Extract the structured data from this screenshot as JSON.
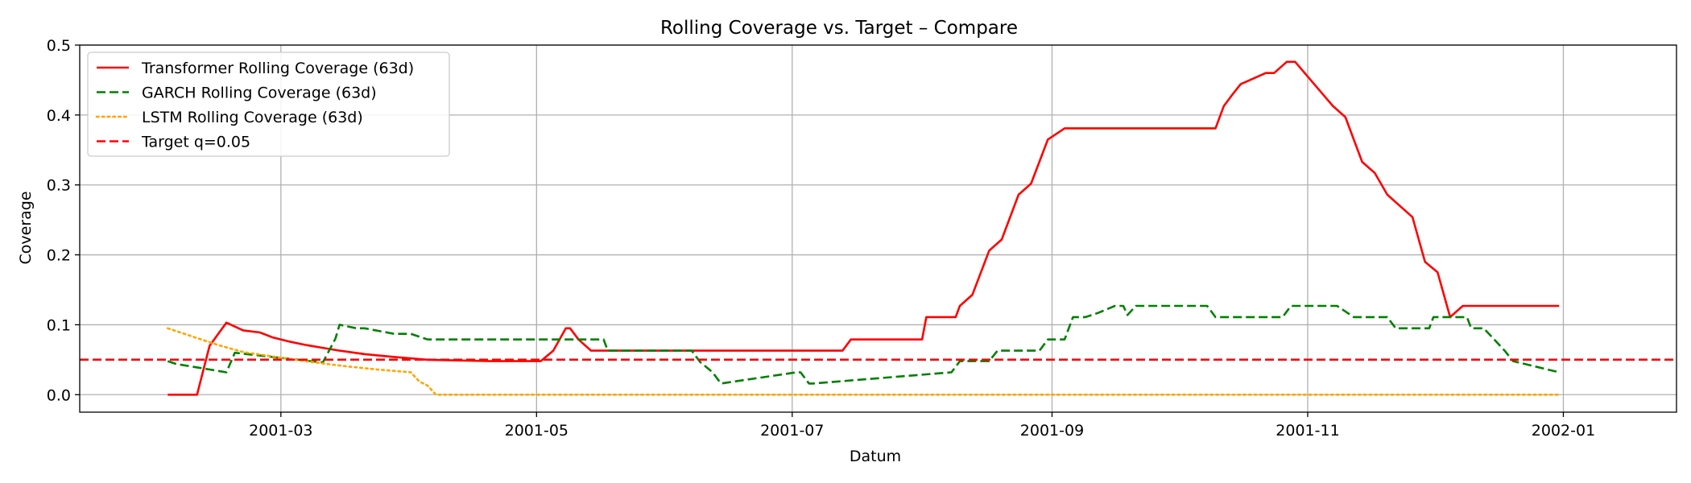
{
  "chart_data": {
    "type": "line",
    "title": "Rolling Coverage vs. Target – Compare",
    "xlabel": "Datum",
    "ylabel": "Coverage",
    "x_range": [
      "2001-01-12",
      "2002-01-28"
    ],
    "ylim": [
      -0.025,
      0.5
    ],
    "x_ticks": [
      "2001-03",
      "2001-05",
      "2001-07",
      "2001-09",
      "2001-11",
      "2002-01"
    ],
    "y_ticks": [
      "0.0",
      "0.1",
      "0.2",
      "0.3",
      "0.4",
      "0.5"
    ],
    "grid": true,
    "legend_position": "top-left",
    "series": [
      {
        "name": "Transformer Rolling Coverage (63d)",
        "color": "#ff0000",
        "linestyle": "solid",
        "x": [
          "2001-02-02",
          "2001-02-09",
          "2001-02-12",
          "2001-02-16",
          "2001-02-20",
          "2001-02-24",
          "2001-02-27",
          "2001-03-03",
          "2001-03-07",
          "2001-03-11",
          "2001-03-15",
          "2001-03-21",
          "2001-03-28",
          "2001-04-05",
          "2001-04-20",
          "2001-05-02",
          "2001-05-05",
          "2001-05-08",
          "2001-05-09",
          "2001-05-11",
          "2001-05-14",
          "2001-07-13",
          "2001-07-15",
          "2001-08-01",
          "2001-08-02",
          "2001-08-09",
          "2001-08-10",
          "2001-08-13",
          "2001-08-17",
          "2001-08-20",
          "2001-08-24",
          "2001-08-27",
          "2001-08-31",
          "2001-09-04",
          "2001-10-10",
          "2001-10-12",
          "2001-10-14",
          "2001-10-16",
          "2001-10-22",
          "2001-10-24",
          "2001-10-27",
          "2001-10-29",
          "2001-11-07",
          "2001-11-10",
          "2001-11-14",
          "2001-11-17",
          "2001-11-20",
          "2001-11-23",
          "2001-11-26",
          "2001-11-29",
          "2001-12-02",
          "2001-12-05",
          "2001-12-08",
          "2001-12-31"
        ],
        "values": [
          0.0,
          0.0,
          0.07,
          0.103,
          0.092,
          0.089,
          0.082,
          0.076,
          0.071,
          0.067,
          0.063,
          0.058,
          0.054,
          0.05,
          0.048,
          0.048,
          0.063,
          0.095,
          0.095,
          0.079,
          0.063,
          0.063,
          0.079,
          0.079,
          0.111,
          0.111,
          0.127,
          0.143,
          0.206,
          0.222,
          0.286,
          0.302,
          0.365,
          0.381,
          0.381,
          0.413,
          0.429,
          0.444,
          0.46,
          0.46,
          0.476,
          0.476,
          0.413,
          0.397,
          0.333,
          0.317,
          0.286,
          0.27,
          0.254,
          0.19,
          0.175,
          0.111,
          0.127,
          0.127
        ]
      },
      {
        "name": "GARCH Rolling Coverage (63d)",
        "color": "#008000",
        "linestyle": "dashed",
        "x": [
          "2001-02-02",
          "2001-02-04",
          "2001-02-12",
          "2001-02-16",
          "2001-02-18",
          "2001-03-11",
          "2001-03-14",
          "2001-03-15",
          "2001-03-19",
          "2001-03-21",
          "2001-03-28",
          "2001-04-01",
          "2001-04-05",
          "2001-05-17",
          "2001-05-18",
          "2001-06-07",
          "2001-06-09",
          "2001-06-11",
          "2001-06-12",
          "2001-06-14",
          "2001-07-02",
          "2001-07-03",
          "2001-07-05",
          "2001-07-06",
          "2001-08-08",
          "2001-08-10",
          "2001-08-17",
          "2001-08-19",
          "2001-08-29",
          "2001-08-31",
          "2001-09-04",
          "2001-09-06",
          "2001-09-09",
          "2001-09-12",
          "2001-09-16",
          "2001-09-18",
          "2001-09-19",
          "2001-09-21",
          "2001-10-08",
          "2001-10-10",
          "2001-10-26",
          "2001-10-28",
          "2001-11-08",
          "2001-11-12",
          "2001-11-20",
          "2001-11-22",
          "2001-11-30",
          "2001-12-01",
          "2001-12-09",
          "2001-12-10",
          "2001-12-13",
          "2001-12-18",
          "2001-12-20",
          "2001-12-31"
        ],
        "values": [
          0.048,
          0.044,
          0.036,
          0.032,
          0.06,
          0.046,
          0.08,
          0.1,
          0.095,
          0.095,
          0.087,
          0.087,
          0.079,
          0.079,
          0.063,
          0.063,
          0.047,
          0.037,
          0.032,
          0.016,
          0.032,
          0.032,
          0.016,
          0.016,
          0.032,
          0.048,
          0.048,
          0.063,
          0.063,
          0.079,
          0.079,
          0.111,
          0.111,
          0.117,
          0.127,
          0.127,
          0.114,
          0.127,
          0.127,
          0.111,
          0.111,
          0.127,
          0.127,
          0.111,
          0.111,
          0.095,
          0.095,
          0.111,
          0.111,
          0.095,
          0.095,
          0.063,
          0.048,
          0.032
        ]
      },
      {
        "name": "LSTM Rolling Coverage (63d)",
        "color": "#ffa500",
        "linestyle": "dotted",
        "x": [
          "2001-02-02",
          "2001-02-08",
          "2001-02-14",
          "2001-02-20",
          "2001-03-01",
          "2001-03-08",
          "2001-03-16",
          "2001-03-24",
          "2001-04-01",
          "2001-04-03",
          "2001-04-05",
          "2001-04-07",
          "2001-12-31"
        ],
        "values": [
          0.095,
          0.083,
          0.071,
          0.061,
          0.053,
          0.047,
          0.041,
          0.036,
          0.032,
          0.019,
          0.013,
          0.0,
          0.0
        ]
      },
      {
        "name": "Target q=0.05",
        "color": "#ff0000",
        "linestyle": "dashed",
        "type": "hline",
        "value": 0.05
      }
    ]
  }
}
